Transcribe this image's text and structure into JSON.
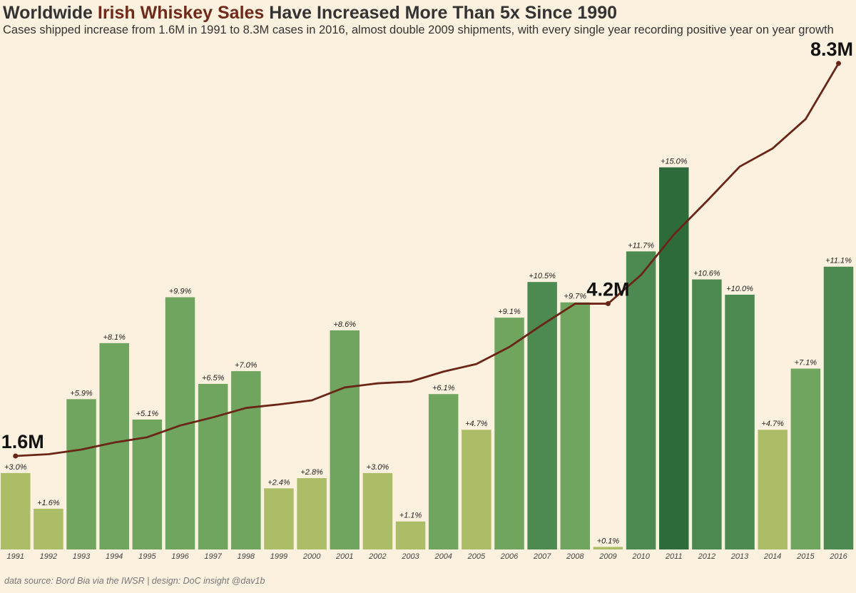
{
  "title": {
    "part1": "Worldwide ",
    "highlight": "Irish Whiskey Sales",
    "part2": " Have Increased More Than 5x Since 1990"
  },
  "subtitle": "Cases shipped increase from 1.6M in 1991 to 8.3M cases in 2016, almost double 2009 shipments, with every single year recording positive year on year growth",
  "footer": "data source: Bord Bia via the IWSR | design: DoC insight @dav1b",
  "colors": {
    "background": "#fcf1df",
    "line": "#6b2517",
    "title_highlight": "#6f2a1a",
    "bar_scale": [
      "#acbd67",
      "#6fa55e",
      "#4d8a51",
      "#2e6b3b"
    ]
  },
  "chart_data": {
    "type": "bar",
    "categories": [
      "1991",
      "1992",
      "1993",
      "1994",
      "1995",
      "1996",
      "1997",
      "1998",
      "1999",
      "2000",
      "2001",
      "2002",
      "2003",
      "2004",
      "2005",
      "2006",
      "2007",
      "2008",
      "2009",
      "2010",
      "2011",
      "2012",
      "2013",
      "2014",
      "2015",
      "2016"
    ],
    "series": [
      {
        "type": "bar",
        "values": [
          3.0,
          1.6,
          5.9,
          8.1,
          5.1,
          9.9,
          6.5,
          7.0,
          2.4,
          2.8,
          8.6,
          3.0,
          1.1,
          6.1,
          4.7,
          9.1,
          10.5,
          9.7,
          0.1,
          11.7,
          15.0,
          10.6,
          10.0,
          4.7,
          7.1,
          11.1
        ],
        "labels": [
          "+3.0%",
          "+1.6%",
          "+5.9%",
          "+8.1%",
          "+5.1%",
          "+9.9%",
          "+6.5%",
          "+7.0%",
          "+2.4%",
          "+2.8%",
          "+8.6%",
          "+3.0%",
          "+1.1%",
          "+6.1%",
          "+4.7%",
          "+9.1%",
          "+10.5%",
          "+9.7%",
          "+0.1%",
          "+11.7%",
          "+15.0%",
          "+10.6%",
          "+10.0%",
          "+4.7%",
          "+7.1%",
          "+11.1%"
        ]
      },
      {
        "type": "line",
        "values": [
          1.6,
          1.63,
          1.71,
          1.83,
          1.92,
          2.12,
          2.26,
          2.42,
          2.48,
          2.55,
          2.77,
          2.84,
          2.87,
          3.04,
          3.17,
          3.46,
          3.84,
          4.2,
          4.2,
          4.69,
          5.38,
          5.95,
          6.54,
          6.85,
          7.35,
          8.3
        ]
      }
    ],
    "annotations": [
      {
        "year": "1991",
        "text": "1.6M"
      },
      {
        "year": "2009",
        "text": "4.2M"
      },
      {
        "year": "2016",
        "text": "8.3M"
      }
    ]
  }
}
